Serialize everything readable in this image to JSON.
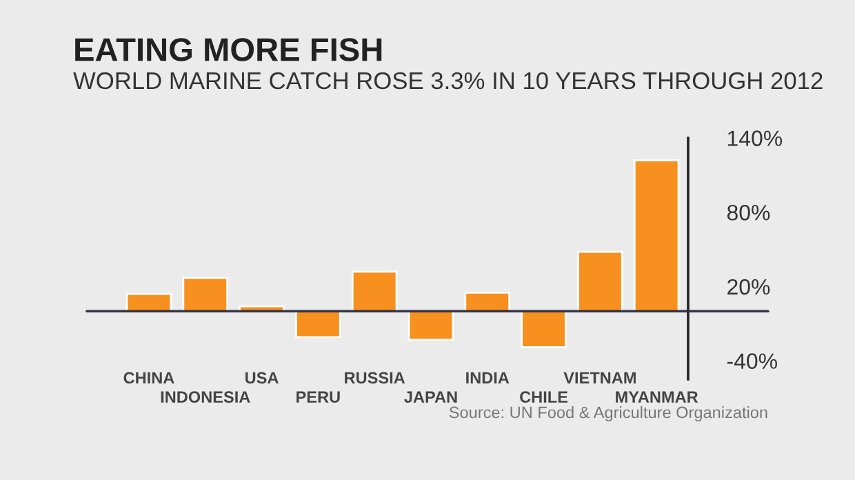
{
  "chart_data": {
    "type": "bar",
    "title": "EATING MORE FISH",
    "subtitle": "WORLD MARINE CATCH ROSE 3.3% IN 10 YEARS THROUGH 2012",
    "categories": [
      "CHINA",
      "INDONESIA",
      "USA",
      "PERU",
      "RUSSIA",
      "JAPAN",
      "INDIA",
      "CHILE",
      "VIETNAM",
      "MYANMAR"
    ],
    "values": [
      14,
      27,
      4,
      -21,
      32,
      -23,
      15,
      -29,
      48,
      122
    ],
    "color": "#f7901e",
    "ylim": [
      -55,
      140
    ],
    "yticks": [
      {
        "value": 140,
        "label": "140%"
      },
      {
        "value": 80,
        "label": "80%"
      },
      {
        "value": 20,
        "label": "20%"
      },
      {
        "value": -40,
        "label": "-40%"
      }
    ],
    "grid": false,
    "legend": false,
    "annotations": [
      "Source: UN Food & Agriculture Organization"
    ]
  }
}
